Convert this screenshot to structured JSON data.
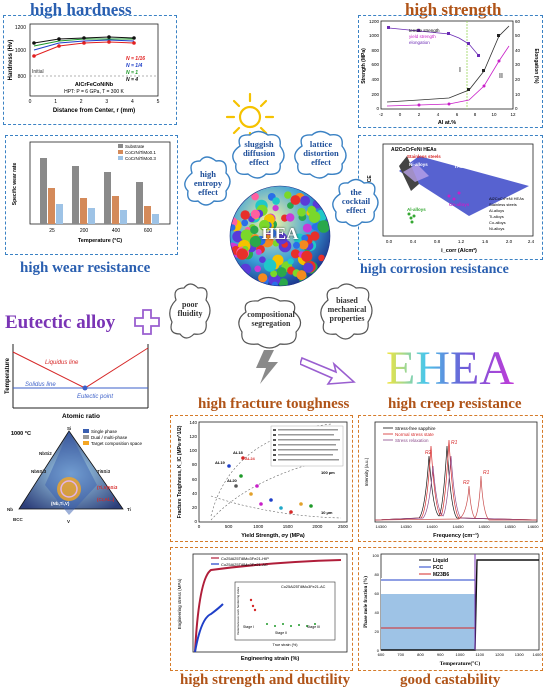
{
  "titles": {
    "high_hardness": "high hardness",
    "high_strength": "high strength",
    "high_wear": "high wear resistance",
    "high_corrosion": "high corrosion resistance",
    "eutectic": "Eutectic alloy",
    "ehea": "EHEA",
    "fracture": "high fracture toughness",
    "creep": "high creep resistance",
    "ductility": "high strength and ductility",
    "castability": "good castability"
  },
  "center": {
    "hea": "HEA",
    "effects": [
      "high entropy effect",
      "sluggish diffusion effect",
      "lattice distortion effect",
      "the cocktail effect"
    ],
    "gray": [
      "poor fluidity",
      "compositional segregation",
      "biased mechanical properties"
    ]
  },
  "hardness": {
    "ylabel": "Hardness (Hv)",
    "xlabel": "Distance from Center, r (mm)",
    "alloy": "AlCrFeCoNiNb",
    "cond": "HPT: P = 6 GPa, T = 300 K",
    "initial": "Initial",
    "legend": [
      "N = 1/16",
      "N = 1/4",
      "N = 1",
      "N = 4"
    ],
    "yticks": [
      "800",
      "1000",
      "1200"
    ],
    "xticks": [
      "0",
      "1",
      "2",
      "3",
      "4",
      "5"
    ]
  },
  "strength": {
    "ylabel": "Strength (MPa)",
    "y2label": "Elongation (%)",
    "xlabel": "Al at.%",
    "legend": [
      "tensile strength",
      "yield strength",
      "elongation"
    ],
    "region1": "I",
    "region2": "II",
    "yticks": [
      "0",
      "200",
      "400",
      "600",
      "800",
      "1000",
      "1200"
    ],
    "y2ticks": [
      "0",
      "10",
      "20",
      "30",
      "40",
      "50",
      "60"
    ],
    "xticks": [
      "-2",
      "0",
      "2",
      "4",
      "6",
      "8",
      "10",
      "12"
    ]
  },
  "wear": {
    "ylabel": "Specific wear rate",
    "xlabel": "Temperature (°C)",
    "legend": [
      "Substrate",
      "CoCrNiTiMo0.1",
      "CoCrNiTiMo0.3"
    ],
    "categories": [
      "25",
      "200",
      "400",
      "600"
    ]
  },
  "corrosion": {
    "title": "Al2CoCrFeNi HEAs",
    "ylabel": "E (V) vs. SCE",
    "xlabel": "i_corr (A/cm²)",
    "labels": [
      "Stainless steels",
      "Ni-alloys",
      "Ti-alloys",
      "Co-alloys",
      "Al-alloys"
    ],
    "legend": [
      "Al2CoCrFeNi HEAs",
      "Stainless steels",
      "Al-alloys",
      "Ti-alloys",
      "Co-alloys",
      "Ni-alloys"
    ],
    "xticks": [
      "0.0",
      "0.4",
      "0.8",
      "1.2",
      "1.6",
      "2.0",
      "2.4"
    ]
  },
  "phase": {
    "ylabel": "Temperature",
    "xlabel": "Atomic ratio",
    "liquidus": "Liquidus line",
    "solidus": "Solidus line",
    "eutectic_point": "Eutectic point"
  },
  "ternary": {
    "temp": "1000 °C",
    "legend": [
      "Single phase",
      "Dual / multi-phase",
      "Target composition space"
    ],
    "labels": [
      "Si",
      "NbSi2",
      "Nb5Si3",
      "Nb",
      "Ti5Si3",
      "Ti",
      "BCC",
      "V",
      "(Nb,Ti,V)",
      "(Nb,V)5Si3",
      "(Ti,V)5Si3",
      "(Cr,Al...)"
    ]
  },
  "fracture_chart": {
    "ylabel": "Fracture Toughness, K_IC (MPa·m^1/2)",
    "xlabel": "Yield Strength, σy (MPa)",
    "xticks": [
      "0",
      "500",
      "1000",
      "1500",
      "2000",
      "2500"
    ],
    "yticks": [
      "0",
      "20",
      "40",
      "60",
      "80",
      "100",
      "120",
      "140"
    ],
    "labels": [
      "AL18",
      "AL19",
      "AL20",
      "AL24",
      "100 µm",
      "10 µm"
    ]
  },
  "creep_chart": {
    "xlabel": "Frequency (cm⁻¹)",
    "ylabel": "Intensity (a.u.)",
    "legend": [
      "Stress-free sapphire",
      "Normal stress state",
      "Stress relaxation"
    ],
    "peaks": [
      "R2",
      "R1",
      "R2",
      "R1"
    ],
    "xticks": [
      "14300",
      "14350",
      "14400",
      "14450",
      "14500",
      "14550",
      "14600"
    ]
  },
  "ductility_chart": {
    "ylabel": "Engineering stress (MPa)",
    "xlabel": "Engineering strain (%)",
    "legend": [
      "Co25Al25Ti8Mo3Fe21-HIP",
      "Co25Al25Ti8Mo3Fe21-AC"
    ],
    "inset_legend": "Co25Al25Ti8Mo3Fe21-AC",
    "inset_xlabel": "True strain (%)",
    "inset_ylabel": "Instantaneous work hardening index",
    "stages": [
      "Stage I",
      "Stage II",
      "Stage III"
    ]
  },
  "cast_chart": {
    "ylabel": "Phase mole fraction (%)",
    "xlabel": "Temperature(°C)",
    "legend": [
      "Liquid",
      "FCC",
      "M23B6"
    ],
    "xticks": [
      "600",
      "700",
      "800",
      "900",
      "1000",
      "1100",
      "1200",
      "1300",
      "1400"
    ],
    "yticks": [
      "0",
      "20",
      "40",
      "60",
      "80",
      "100"
    ]
  }
}
